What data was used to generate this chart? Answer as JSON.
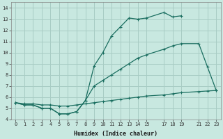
{
  "xlabel": "Humidex (Indice chaleur)",
  "bg_color": "#c8e8e0",
  "grid_color": "#a8ccc4",
  "line_color": "#1a6e60",
  "xlim": [
    -0.5,
    23.5
  ],
  "ylim": [
    4,
    14.5
  ],
  "xticks": [
    0,
    1,
    2,
    3,
    4,
    5,
    6,
    7,
    8,
    9,
    10,
    11,
    12,
    13,
    14,
    15,
    17,
    18,
    19,
    21,
    22,
    23
  ],
  "yticks": [
    4,
    5,
    6,
    7,
    8,
    9,
    10,
    11,
    12,
    13,
    14
  ],
  "series1_x": [
    0,
    1,
    2,
    3,
    4,
    5,
    6,
    7,
    8,
    9,
    10,
    11,
    12,
    13,
    14,
    15,
    17,
    18,
    19
  ],
  "series1_y": [
    5.5,
    5.3,
    5.3,
    5.0,
    5.0,
    4.5,
    4.5,
    4.7,
    5.7,
    8.8,
    10.0,
    11.5,
    12.3,
    13.1,
    13.0,
    13.1,
    13.6,
    13.2,
    13.3
  ],
  "series2_x": [
    0,
    1,
    2,
    3,
    4,
    5,
    6,
    7,
    8,
    9,
    10,
    11,
    12,
    13,
    14,
    15,
    17,
    18,
    19,
    21,
    22,
    23
  ],
  "series2_y": [
    5.5,
    5.3,
    5.3,
    5.0,
    5.0,
    4.5,
    4.5,
    4.7,
    5.7,
    7.0,
    7.5,
    8.0,
    8.5,
    9.0,
    9.5,
    9.8,
    10.3,
    10.6,
    10.8,
    10.8,
    8.7,
    6.6
  ],
  "series3_x": [
    0,
    1,
    2,
    3,
    4,
    5,
    6,
    7,
    8,
    9,
    10,
    11,
    12,
    13,
    14,
    15,
    17,
    18,
    19,
    21,
    22,
    23
  ],
  "series3_y": [
    5.5,
    5.4,
    5.4,
    5.3,
    5.3,
    5.2,
    5.2,
    5.3,
    5.4,
    5.5,
    5.6,
    5.7,
    5.8,
    5.9,
    6.0,
    6.1,
    6.2,
    6.3,
    6.4,
    6.5,
    6.55,
    6.6
  ],
  "xtick_labels": [
    "0",
    "1",
    "2",
    "3",
    "4",
    "5",
    "6",
    "7",
    "8",
    "9",
    "10",
    "11",
    "12",
    "13",
    "14",
    "15",
    "17",
    "18",
    "19",
    "21",
    "22",
    "23"
  ],
  "fontsize_ticks": 5,
  "fontsize_xlabel": 6,
  "linewidth": 0.9,
  "markersize": 3
}
